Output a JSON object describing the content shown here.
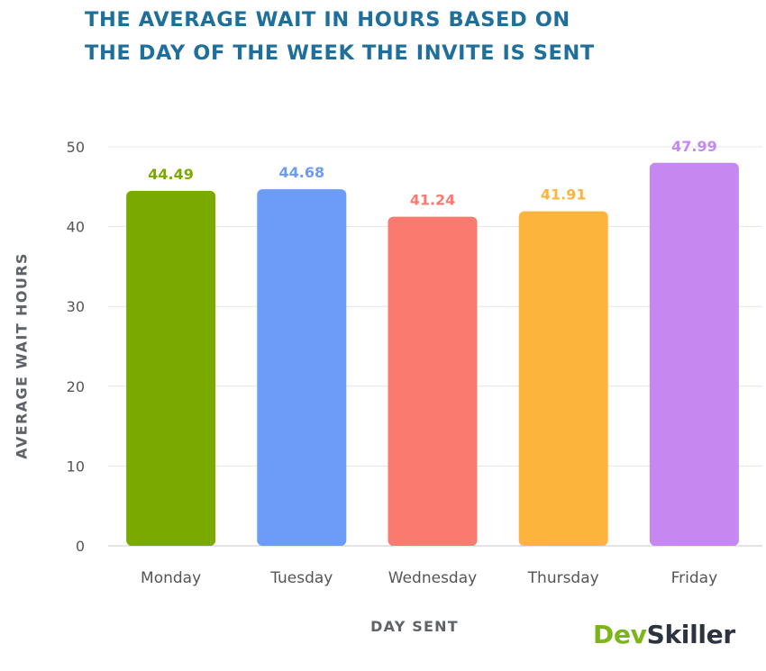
{
  "title_lines": [
    "THE AVERAGE WAIT IN HOURS BASED ON",
    "THE DAY OF THE WEEK THE INVITE IS SENT"
  ],
  "chart_data": {
    "type": "bar",
    "categories": [
      "Monday",
      "Tuesday",
      "Wednesday",
      "Thursday",
      "Friday"
    ],
    "values": [
      44.49,
      44.68,
      41.24,
      41.91,
      47.99
    ],
    "data_labels": [
      "44.49",
      "44.68",
      "41.24",
      "41.91",
      "47.99"
    ],
    "colors": [
      "#7aaa00",
      "#6b9cf8",
      "#fa7a70",
      "#fdb43c",
      "#c688f0"
    ],
    "xlabel": "DAY SENT",
    "ylabel": "AVERAGE WAIT HOURS",
    "ylim": [
      0,
      50
    ],
    "yticks": [
      0,
      10,
      20,
      30,
      40,
      50
    ],
    "grid": true
  },
  "logo": {
    "part1": "Dev",
    "part2": "Skiller"
  }
}
